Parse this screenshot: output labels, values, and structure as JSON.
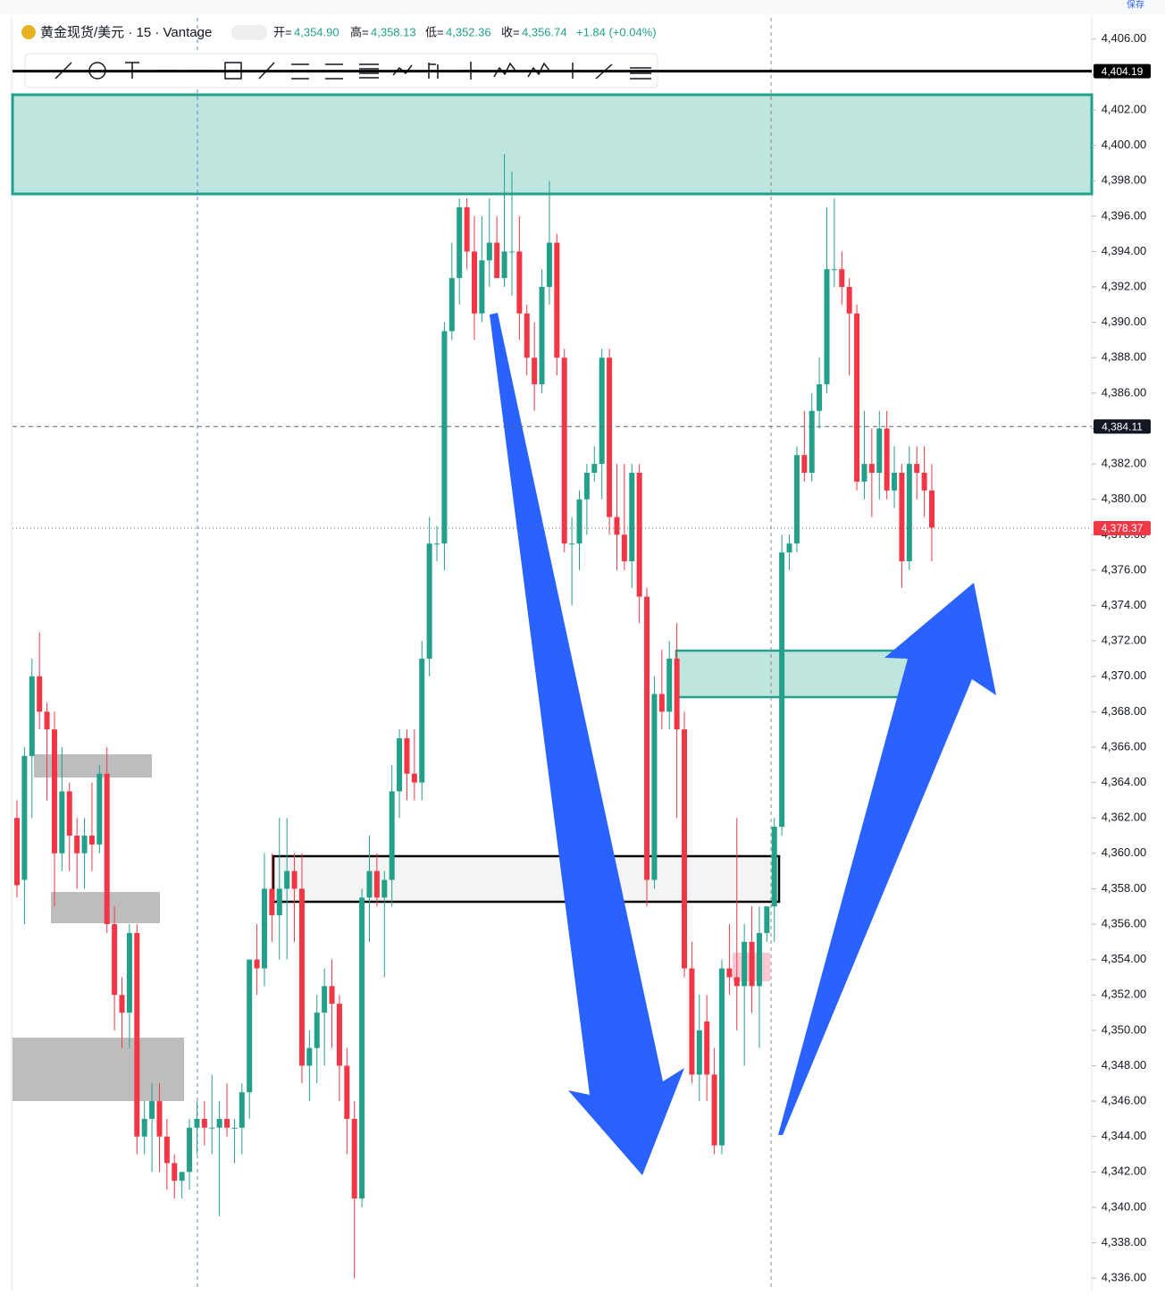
{
  "header": {
    "symbol": "黄金现货/美元 · 15 · Vantage",
    "open_label": "开=",
    "open": "4,354.90",
    "high_label": "高=",
    "high": "4,358.13",
    "low_label": "低=",
    "low": "4,352.36",
    "close_label": "收=",
    "close": "4,356.74",
    "change": "+1.84 (+0.04%)",
    "save": "保存"
  },
  "chart_data": {
    "type": "candlestick",
    "up_color": "#22a08a",
    "down_color": "#f23645",
    "ylim": [
      4335.3,
      4407.2
    ],
    "yticks": [
      {
        "value": 4336,
        "label": "4,336.00"
      },
      {
        "value": 4338,
        "label": "4,338.00"
      },
      {
        "value": 4340,
        "label": "4,340.00"
      },
      {
        "value": 4342,
        "label": "4,342.00"
      },
      {
        "value": 4344,
        "label": "4,344.00"
      },
      {
        "value": 4346,
        "label": "4,346.00"
      },
      {
        "value": 4348,
        "label": "4,348.00"
      },
      {
        "value": 4350,
        "label": "4,350.00"
      },
      {
        "value": 4352,
        "label": "4,352.00"
      },
      {
        "value": 4354,
        "label": "4,354.00"
      },
      {
        "value": 4356,
        "label": "4,356.00"
      },
      {
        "value": 4358,
        "label": "4,358.00"
      },
      {
        "value": 4360,
        "label": "4,360.00"
      },
      {
        "value": 4362,
        "label": "4,362.00"
      },
      {
        "value": 4364,
        "label": "4,364.00"
      },
      {
        "value": 4366,
        "label": "4,366.00"
      },
      {
        "value": 4368,
        "label": "4,368.00"
      },
      {
        "value": 4370,
        "label": "4,370.00"
      },
      {
        "value": 4372,
        "label": "4,372.00"
      },
      {
        "value": 4374,
        "label": "4,374.00"
      },
      {
        "value": 4376,
        "label": "4,376.00"
      },
      {
        "value": 4378,
        "label": "4,378.00"
      },
      {
        "value": 4380,
        "label": "4,380.00"
      },
      {
        "value": 4382,
        "label": "4,382.00"
      },
      {
        "value": 4384,
        "label": "4,384.00"
      },
      {
        "value": 4386,
        "label": "4,386.00"
      },
      {
        "value": 4388,
        "label": "4,388.00"
      },
      {
        "value": 4390,
        "label": "4,390.00"
      },
      {
        "value": 4392,
        "label": "4,392.00"
      },
      {
        "value": 4394,
        "label": "4,394.00"
      },
      {
        "value": 4396,
        "label": "4,396.00"
      },
      {
        "value": 4398,
        "label": "4,398.00"
      },
      {
        "value": 4400,
        "label": "4,400.00"
      },
      {
        "value": 4402,
        "label": "4,402.00"
      },
      {
        "value": 4404,
        "label": "4,404.00"
      },
      {
        "value": 4406,
        "label": "4,406.00"
      }
    ],
    "price_lines": [
      {
        "value": 4404.19,
        "label": "4,404.19",
        "color": "#000000"
      },
      {
        "value": 4384.11,
        "label": "4,384.11",
        "color": "#131722"
      },
      {
        "value": 4378.37,
        "label": "4,378.37",
        "color": "#f23645"
      }
    ],
    "open": [
      4362,
      4358.5,
      4365.5,
      4370,
      4368,
      4367,
      4360,
      4363.5,
      4361,
      4360,
      4361,
      4360.5,
      4364.5,
      4356,
      4352,
      4351,
      4355.5,
      4344,
      4345,
      4346,
      4344,
      4342.5,
      4341.5,
      4342,
      4344.5,
      4345,
      4344.5,
      4344.5,
      4345,
      4344.5,
      4344.5,
      4346.5,
      4354,
      4353.5,
      4358,
      4356.5,
      4358,
      4359,
      4358,
      4348,
      4349,
      4351,
      4352.5,
      4351.5,
      4348,
      4345,
      4340.5,
      4357.5,
      4359,
      4357.5,
      4358.5,
      4363.5,
      4366.5,
      4364.5,
      4364,
      4371,
      4377.5,
      4377.5,
      4389.5,
      4392.5,
      4396.5,
      4394,
      4390.5,
      4393.5,
      4394.5,
      4392.5,
      4394,
      4394,
      4390.5,
      4388,
      4386.5,
      4392,
      4394.5,
      4388,
      4377.5,
      4377.5,
      4380,
      4381.5,
      4382,
      4388,
      4379,
      4378,
      4376.5,
      4381.5,
      4374.5,
      4358.5,
      4369,
      4368,
      4371,
      4367,
      4353.5,
      4347.5,
      4350.5,
      4347.5,
      4343.5,
      4353.5,
      4353,
      4352.5,
      4355,
      4352.5,
      4355.5,
      4357,
      4361.5,
      4377,
      4377.5,
      4382.5,
      4381.5,
      4385,
      4386.5,
      4393,
      4393,
      4392,
      4390.5,
      4381,
      4382,
      4381.5,
      4384,
      4380.5,
      4381.5,
      4376.5,
      4382,
      4381.5,
      4380.5
    ],
    "high": [
      4363,
      4366,
      4371,
      4372.5,
      4368.5,
      4368,
      4366,
      4364,
      4362,
      4362,
      4364,
      4365,
      4366,
      4357,
      4353,
      4356,
      4356,
      4346,
      4347,
      4347,
      4345,
      4343,
      4342,
      4345,
      4346,
      4346,
      4347.5,
      4346,
      4347,
      4345,
      4347,
      4354,
      4356,
      4360,
      4360,
      4362,
      4362,
      4360,
      4360,
      4350,
      4352,
      4353.5,
      4354,
      4352,
      4349,
      4346,
      4358,
      4361,
      4360,
      4359,
      4365,
      4367,
      4367,
      4367,
      4372,
      4379,
      4378.5,
      4390,
      4394.5,
      4397,
      4397,
      4396,
      4396,
      4397,
      4396,
      4399.5,
      4398.5,
      4396,
      4391,
      4390,
      4393,
      4398,
      4395,
      4388.5,
      4379,
      4380.5,
      4382,
      4383,
      4388.5,
      4388.5,
      4382,
      4382,
      4382,
      4382,
      4375,
      4370,
      4371.5,
      4372,
      4373,
      4368,
      4355,
      4352,
      4352,
      4349,
      4354,
      4356,
      4362,
      4356,
      4357,
      4357,
      4357,
      4362,
      4378,
      4378,
      4383,
      4385,
      4386,
      4388,
      4396.5,
      4397,
      4394,
      4392.5,
      4391,
      4385,
      4384,
      4385,
      4385,
      4383,
      4382,
      4383,
      4383,
      4383,
      4382
    ],
    "low": [
      4357.5,
      4356,
      4362,
      4367,
      4363,
      4357,
      4359,
      4359,
      4358,
      4358,
      4359,
      4360,
      4355.5,
      4350,
      4349,
      4349,
      4343,
      4343,
      4342,
      4342,
      4341,
      4340.5,
      4340.5,
      4341,
      4343,
      4343.5,
      4343,
      4339.5,
      4344,
      4342.5,
      4343,
      4345,
      4352,
      4352.5,
      4355,
      4354,
      4354,
      4355,
      4347,
      4346,
      4347,
      4348,
      4349,
      4346,
      4343,
      4336,
      4340,
      4355,
      4357,
      4353,
      4357,
      4362,
      4363,
      4363,
      4363,
      4370,
      4376.5,
      4376,
      4389,
      4391,
      4393,
      4389,
      4390,
      4392,
      4392.5,
      4392,
      4391.5,
      4389,
      4387,
      4385,
      4386,
      4391,
      4387,
      4377,
      4374,
      4376,
      4378,
      4381,
      4380,
      4378,
      4376,
      4376,
      4375,
      4373,
      4357,
      4358,
      4367,
      4367,
      4362,
      4353,
      4347,
      4346,
      4346,
      4343,
      4343,
      4352,
      4350,
      4348,
      4351,
      4349,
      4355,
      4355,
      4361,
      4376,
      4377,
      4381,
      4381,
      4384,
      4386,
      4392,
      4391,
      4387,
      4380.5,
      4380,
      4379,
      4380,
      4380,
      4379.5,
      4375,
      4376,
      4380,
      4379,
      4376.5
    ],
    "close": [
      4358.2,
      4365.5,
      4370,
      4368,
      4367,
      4360,
      4363.5,
      4361,
      4360,
      4361,
      4360.5,
      4364.5,
      4356,
      4352,
      4351,
      4355.5,
      4344,
      4345,
      4346,
      4344,
      4342.5,
      4341.5,
      4342,
      4344.5,
      4345,
      4344.5,
      4344.5,
      4345,
      4344.5,
      4344.5,
      4346.5,
      4354,
      4353.5,
      4358,
      4356.5,
      4358,
      4359,
      4358,
      4348,
      4349,
      4351,
      4352.5,
      4351.5,
      4348,
      4345,
      4340.5,
      4357.5,
      4359,
      4357.5,
      4358.5,
      4363.5,
      4366.5,
      4364.5,
      4364,
      4371,
      4377.5,
      4377.5,
      4389.5,
      4392.5,
      4396.5,
      4394,
      4390.5,
      4393.5,
      4394.5,
      4392.5,
      4394,
      4394,
      4390.5,
      4388,
      4386.5,
      4392,
      4394.5,
      4388,
      4377.5,
      4377.5,
      4380,
      4381.5,
      4382,
      4388,
      4379,
      4378,
      4376.5,
      4381.5,
      4374.5,
      4358.5,
      4369,
      4368,
      4371,
      4367,
      4353.5,
      4347.5,
      4350,
      4347.5,
      4343.5,
      4353.5,
      4353,
      4352.5,
      4355,
      4352.5,
      4355.5,
      4357,
      4361.5,
      4377,
      4377.5,
      4382.5,
      4381.5,
      4385,
      4386.5,
      4393,
      4393,
      4392,
      4390.5,
      4381,
      4382,
      4381.5,
      4384,
      4380.5,
      4381.5,
      4376.5,
      4382,
      4381.5,
      4380.5,
      4378.4
    ]
  }
}
